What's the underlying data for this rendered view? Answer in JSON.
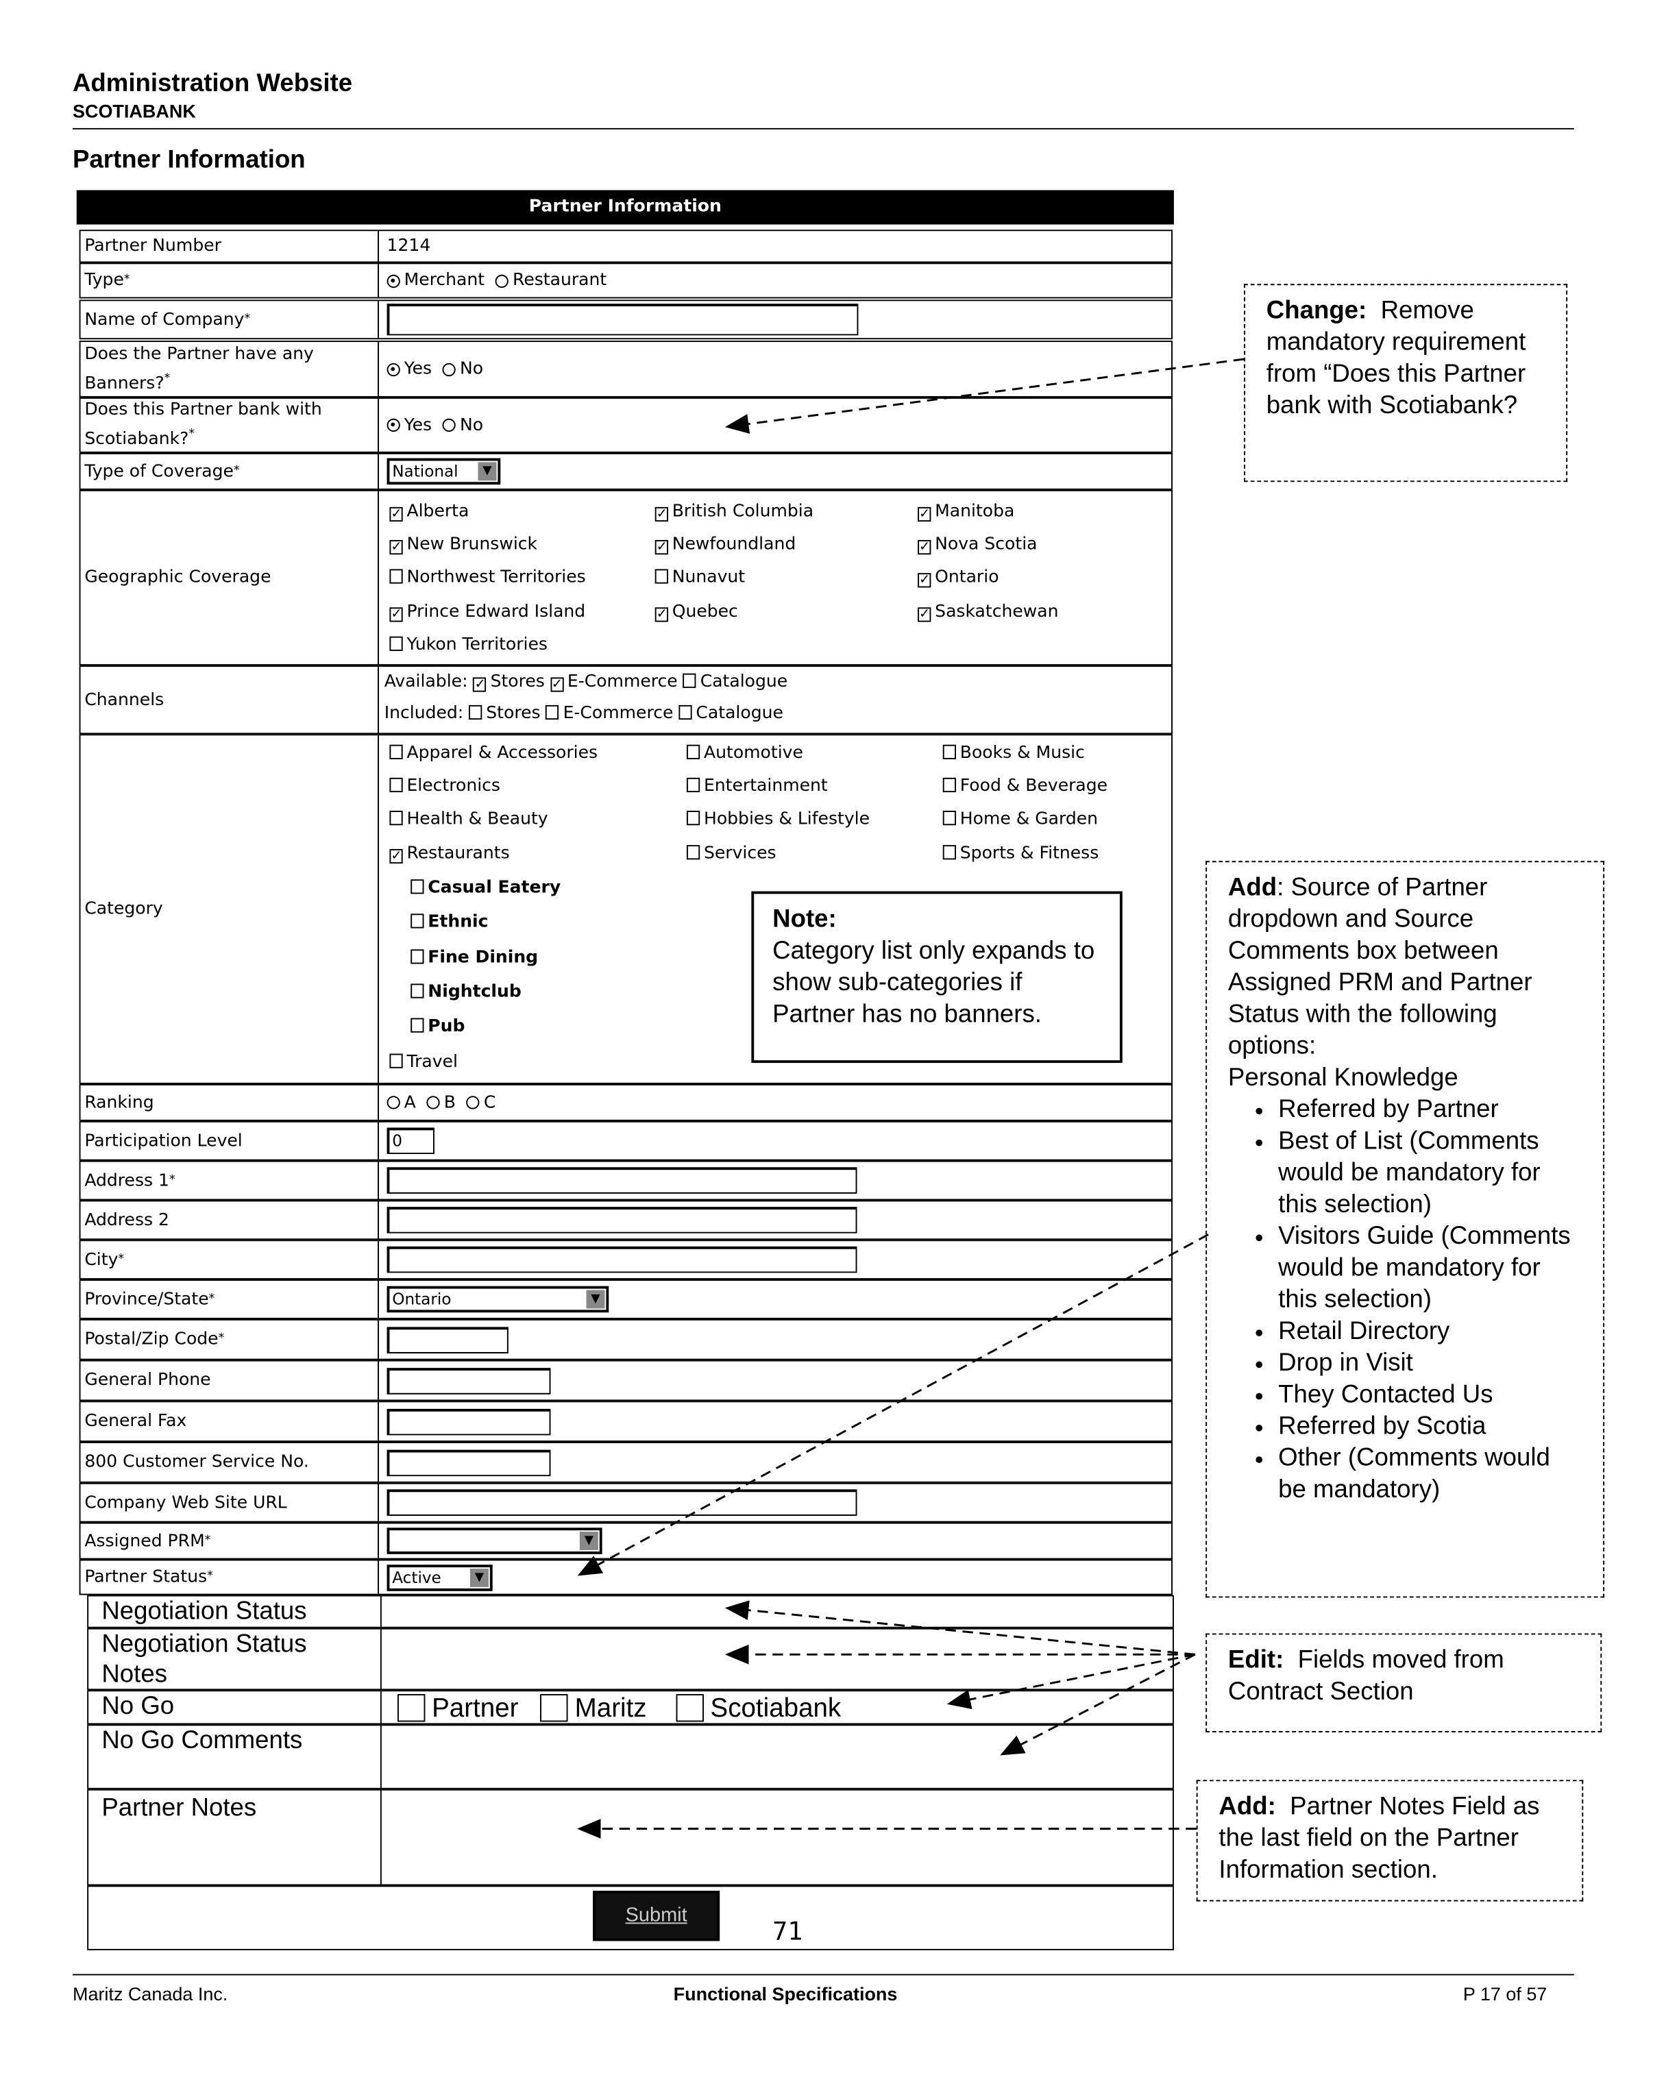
{
  "header": {
    "title": "Administration Website",
    "subtitle": "SCOTIABANK",
    "section_title": "Partner Information"
  },
  "form": {
    "table_title": "Partner Information",
    "partner_number": {
      "label": "Partner Number",
      "value": "1214"
    },
    "type": {
      "label": "Type",
      "options": [
        "Merchant",
        "Restaurant"
      ],
      "selected": "Merchant"
    },
    "company": {
      "label": "Name of Company",
      "value": ""
    },
    "banners": {
      "label": "Does the Partner have any Banners?",
      "options": [
        "Yes",
        "No"
      ],
      "selected": "Yes"
    },
    "bank": {
      "label": "Does this Partner bank with Scotiabank?",
      "options": [
        "Yes",
        "No"
      ],
      "selected": "Yes"
    },
    "coverage": {
      "label": "Type of Coverage",
      "value": "National"
    },
    "geo": {
      "label": "Geographic Coverage",
      "items": [
        {
          "label": "Alberta",
          "checked": true
        },
        {
          "label": "British Columbia",
          "checked": true
        },
        {
          "label": "Manitoba",
          "checked": true
        },
        {
          "label": "New Brunswick",
          "checked": true
        },
        {
          "label": "Newfoundland",
          "checked": true
        },
        {
          "label": "Nova Scotia",
          "checked": true
        },
        {
          "label": "Northwest Territories",
          "checked": false
        },
        {
          "label": "Nunavut",
          "checked": false
        },
        {
          "label": "Ontario",
          "checked": true
        },
        {
          "label": "Prince Edward Island",
          "checked": true
        },
        {
          "label": "Quebec",
          "checked": true
        },
        {
          "label": "Saskatchewan",
          "checked": true
        },
        {
          "label": "Yukon Territories",
          "checked": false
        }
      ]
    },
    "channels": {
      "label": "Channels",
      "available_label": "Available:",
      "included_label": "Included:",
      "available": [
        {
          "label": "Stores",
          "checked": true
        },
        {
          "label": "E-Commerce",
          "checked": true
        },
        {
          "label": "Catalogue",
          "checked": false
        }
      ],
      "included": [
        {
          "label": "Stores",
          "checked": false
        },
        {
          "label": "E-Commerce",
          "checked": false
        },
        {
          "label": "Catalogue",
          "checked": false
        }
      ]
    },
    "category": {
      "label": "Category",
      "items": [
        {
          "label": "Apparel & Accessories",
          "checked": false
        },
        {
          "label": "Automotive",
          "checked": false
        },
        {
          "label": "Books & Music",
          "checked": false
        },
        {
          "label": "Electronics",
          "checked": false
        },
        {
          "label": "Entertainment",
          "checked": false
        },
        {
          "label": "Food & Beverage",
          "checked": false
        },
        {
          "label": "Health & Beauty",
          "checked": false
        },
        {
          "label": "Hobbies & Lifestyle",
          "checked": false
        },
        {
          "label": "Home & Garden",
          "checked": false
        },
        {
          "label": "Restaurants",
          "checked": true
        },
        {
          "label": "Services",
          "checked": false
        },
        {
          "label": "Sports & Fitness",
          "checked": false
        }
      ],
      "subcategories": [
        "Casual Eatery",
        "Ethnic",
        "Fine Dining",
        "Nightclub",
        "Pub"
      ],
      "last": "Travel"
    },
    "ranking": {
      "label": "Ranking",
      "options": [
        "A",
        "B",
        "C"
      ]
    },
    "participation": {
      "label": "Participation Level",
      "value": "0"
    },
    "address1": {
      "label": "Address 1"
    },
    "address2": {
      "label": "Address 2"
    },
    "city": {
      "label": "City"
    },
    "province": {
      "label": "Province/State",
      "value": "Ontario"
    },
    "postal": {
      "label": "Postal/Zip Code"
    },
    "phone": {
      "label": "General Phone"
    },
    "fax": {
      "label": "General Fax"
    },
    "service": {
      "label": "800 Customer Service No."
    },
    "url": {
      "label": "Company Web Site URL"
    },
    "prm": {
      "label": "Assigned PRM",
      "value": ""
    },
    "status": {
      "label": "Partner Status",
      "value": "Active"
    },
    "neg_status": {
      "label": "Negotiation Status"
    },
    "neg_notes": {
      "label": "Negotiation Status Notes"
    },
    "nogo": {
      "label": "No Go",
      "options": [
        "Partner",
        "Maritz",
        "Scotiabank"
      ]
    },
    "nogo_comments": {
      "label": "No Go Comments"
    },
    "partner_notes": {
      "label": "Partner Notes"
    },
    "submit": "Submit",
    "page_number": "71",
    "asterisk": "*"
  },
  "annotations": {
    "note": {
      "title": "Note:",
      "text": "Category list only expands to show sub-categories if Partner has no banners."
    },
    "change": {
      "title": "Change:",
      "text": "Remove mandatory requirement from “Does this Partner bank with Scotiabank?"
    },
    "add_source": {
      "title": "Add",
      "text": ": Source of Partner dropdown and Source Comments box between Assigned PRM and Partner Status with the following options:",
      "subhead": "Personal Knowledge",
      "items": [
        "Referred by Partner",
        "Best of List (Comments would be mandatory for this selection)",
        "Visitors Guide (Comments would be mandatory for this selection)",
        "Retail Directory",
        "Drop in Visit",
        "They Contacted Us",
        "Referred by Scotia",
        "Other (Comments would be mandatory)"
      ]
    },
    "edit": {
      "title": "Edit:",
      "text": "Fields moved from Contract Section"
    },
    "add_notes": {
      "title": "Add:",
      "text": "Partner Notes Field as the last field on the Partner Information section."
    }
  },
  "footer": {
    "left": "Maritz Canada Inc.",
    "center": "Functional Specifications",
    "right": "P 17 of 57"
  }
}
